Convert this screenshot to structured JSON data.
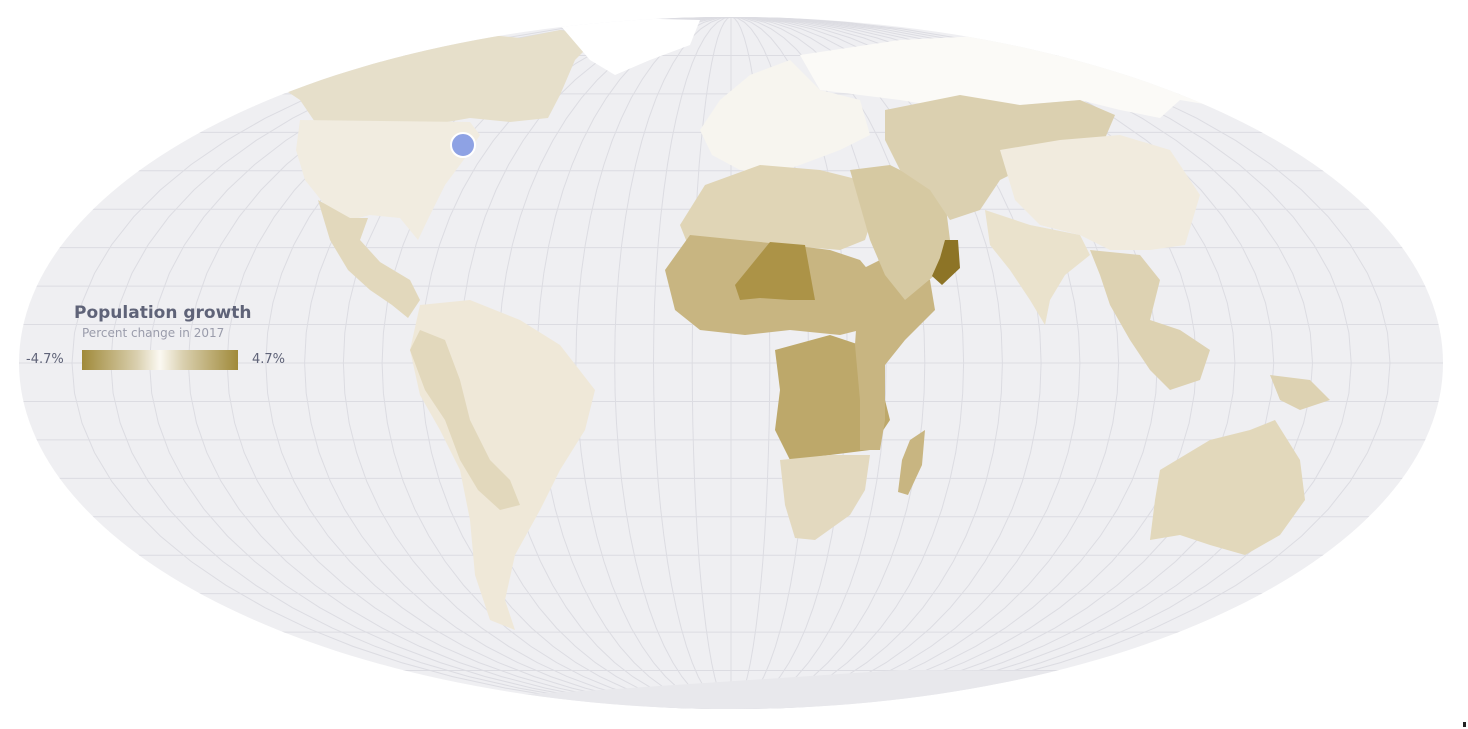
{
  "legend": {
    "title": "Population growth",
    "subtitle": "Percent change in 2017",
    "min_label": "-4.7%",
    "max_label": "4.7%",
    "min_value": -4.7,
    "max_value": 4.7
  },
  "colors": {
    "ocean": "#efeff2",
    "graticule": "#dcdce2",
    "negative": "#ffffff",
    "low": "#efe9dc",
    "mid": "#dccfad",
    "high": "#bca86c",
    "max": "#8d7426",
    "marker": "#8ea2e4"
  },
  "watermark_text": "fied",
  "marker": {
    "name": "selected-location-marker",
    "lon": -75,
    "lat": 42
  },
  "regions": [
    {
      "name": "canada",
      "color": "#e6dfca"
    },
    {
      "name": "usa",
      "color": "#f1ece0"
    },
    {
      "name": "mexico",
      "color": "#e2d8bc"
    },
    {
      "name": "greenland",
      "color": "#ffffff"
    },
    {
      "name": "south-america",
      "color": "#efe8d8"
    },
    {
      "name": "andes",
      "color": "#e2d8bc"
    },
    {
      "name": "russia",
      "color": "#fbfaf7"
    },
    {
      "name": "europe",
      "color": "#f7f5ef"
    },
    {
      "name": "north-africa",
      "color": "#e0d5b6"
    },
    {
      "name": "sahel",
      "color": "#c8b581"
    },
    {
      "name": "niger",
      "color": "#ac9347"
    },
    {
      "name": "central-africa",
      "color": "#bda86a"
    },
    {
      "name": "east-africa",
      "color": "#c8b581"
    },
    {
      "name": "southern-africa",
      "color": "#e3d9bf"
    },
    {
      "name": "madagascar",
      "color": "#c8b581"
    },
    {
      "name": "middle-east",
      "color": "#d6c9a2"
    },
    {
      "name": "oman",
      "color": "#8d7426"
    },
    {
      "name": "central-asia",
      "color": "#dbd0b0"
    },
    {
      "name": "china",
      "color": "#f1ebde"
    },
    {
      "name": "india",
      "color": "#eae2cc"
    },
    {
      "name": "southeast-asia",
      "color": "#ddd2b2"
    },
    {
      "name": "australia",
      "color": "#e2d8bb"
    },
    {
      "name": "new-zealand",
      "color": "#e4dac0"
    }
  ]
}
